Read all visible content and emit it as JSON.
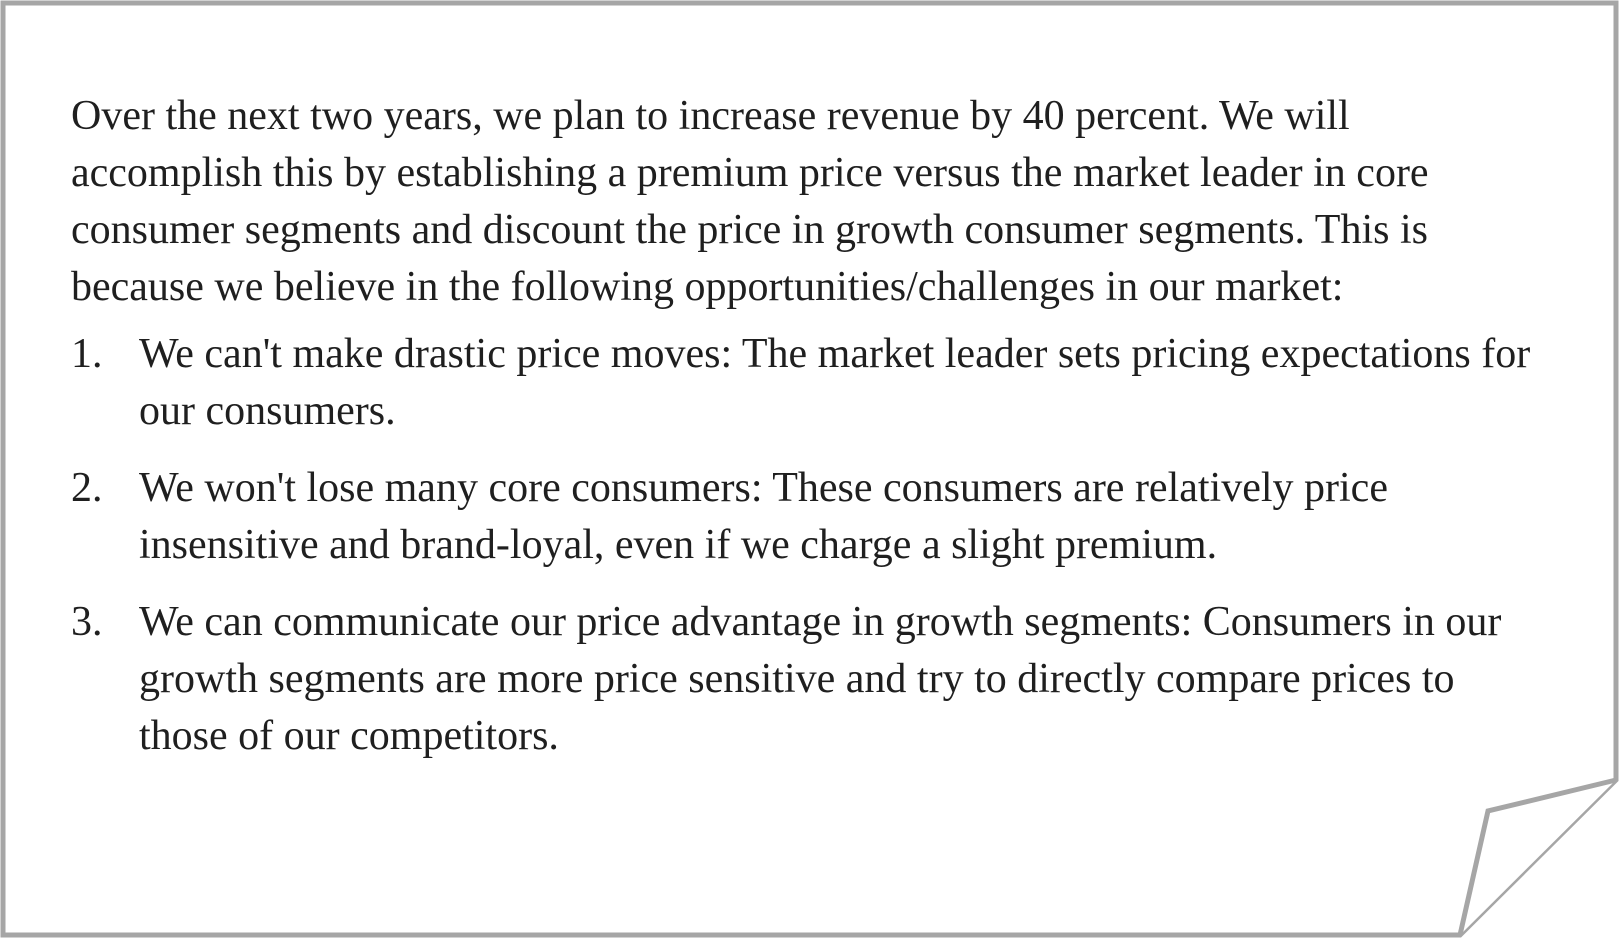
{
  "document": {
    "intro": "Over the next two years, we plan to increase revenue by 40 percent. We will accomplish this by establishing a premium price versus the market leader in core consumer segments and discount the price in growth consumer segments. This is because we believe in the following opportunities/challenges in our market:",
    "points": [
      {
        "number": "1.",
        "text": "We can't make drastic price moves: The market leader sets pricing expectations for our consumers."
      },
      {
        "number": "2.",
        "text": "We won't lose many core consumers: These consumers are relatively price insensitive and brand-loyal, even if we charge a slight premium."
      },
      {
        "number": "3.",
        "text": "We can communicate our price advantage in growth segments: Consumers in our growth segments are more price sensitive and try to directly compare prices to those of our competitors."
      }
    ]
  },
  "colors": {
    "border": "#a6a6a6",
    "text": "#1f1f1f",
    "background": "#ffffff"
  }
}
